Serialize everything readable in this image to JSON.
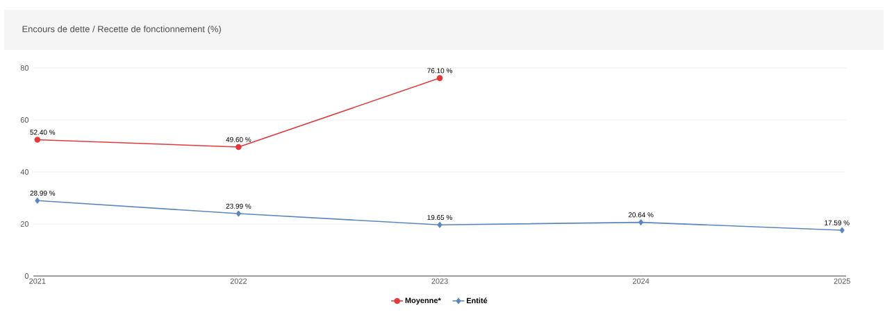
{
  "chart_data": {
    "type": "line",
    "title": "Encours de dette / Recette de fonctionnement (%)",
    "categories": [
      "2021",
      "2022",
      "2023",
      "2024",
      "2025"
    ],
    "series": [
      {
        "name": "Moyenne*",
        "color": "#e5383b",
        "marker": "circle",
        "values": [
          52.4,
          49.6,
          76.1,
          null,
          null
        ],
        "value_labels": [
          "52.40 %",
          "49.60 %",
          "76.10 %",
          null,
          null
        ]
      },
      {
        "name": "Entité",
        "color": "#5a87bf",
        "marker": "diamond",
        "values": [
          28.99,
          23.99,
          19.65,
          20.64,
          17.59
        ],
        "value_labels": [
          "28.99 %",
          "23.99 %",
          "19.65 %",
          "20.64 %",
          "17.59 %"
        ]
      }
    ],
    "ylim": [
      0,
      80
    ],
    "yticks": [
      0,
      20,
      40,
      60,
      80
    ],
    "grid": "y",
    "legend": "bottom"
  }
}
